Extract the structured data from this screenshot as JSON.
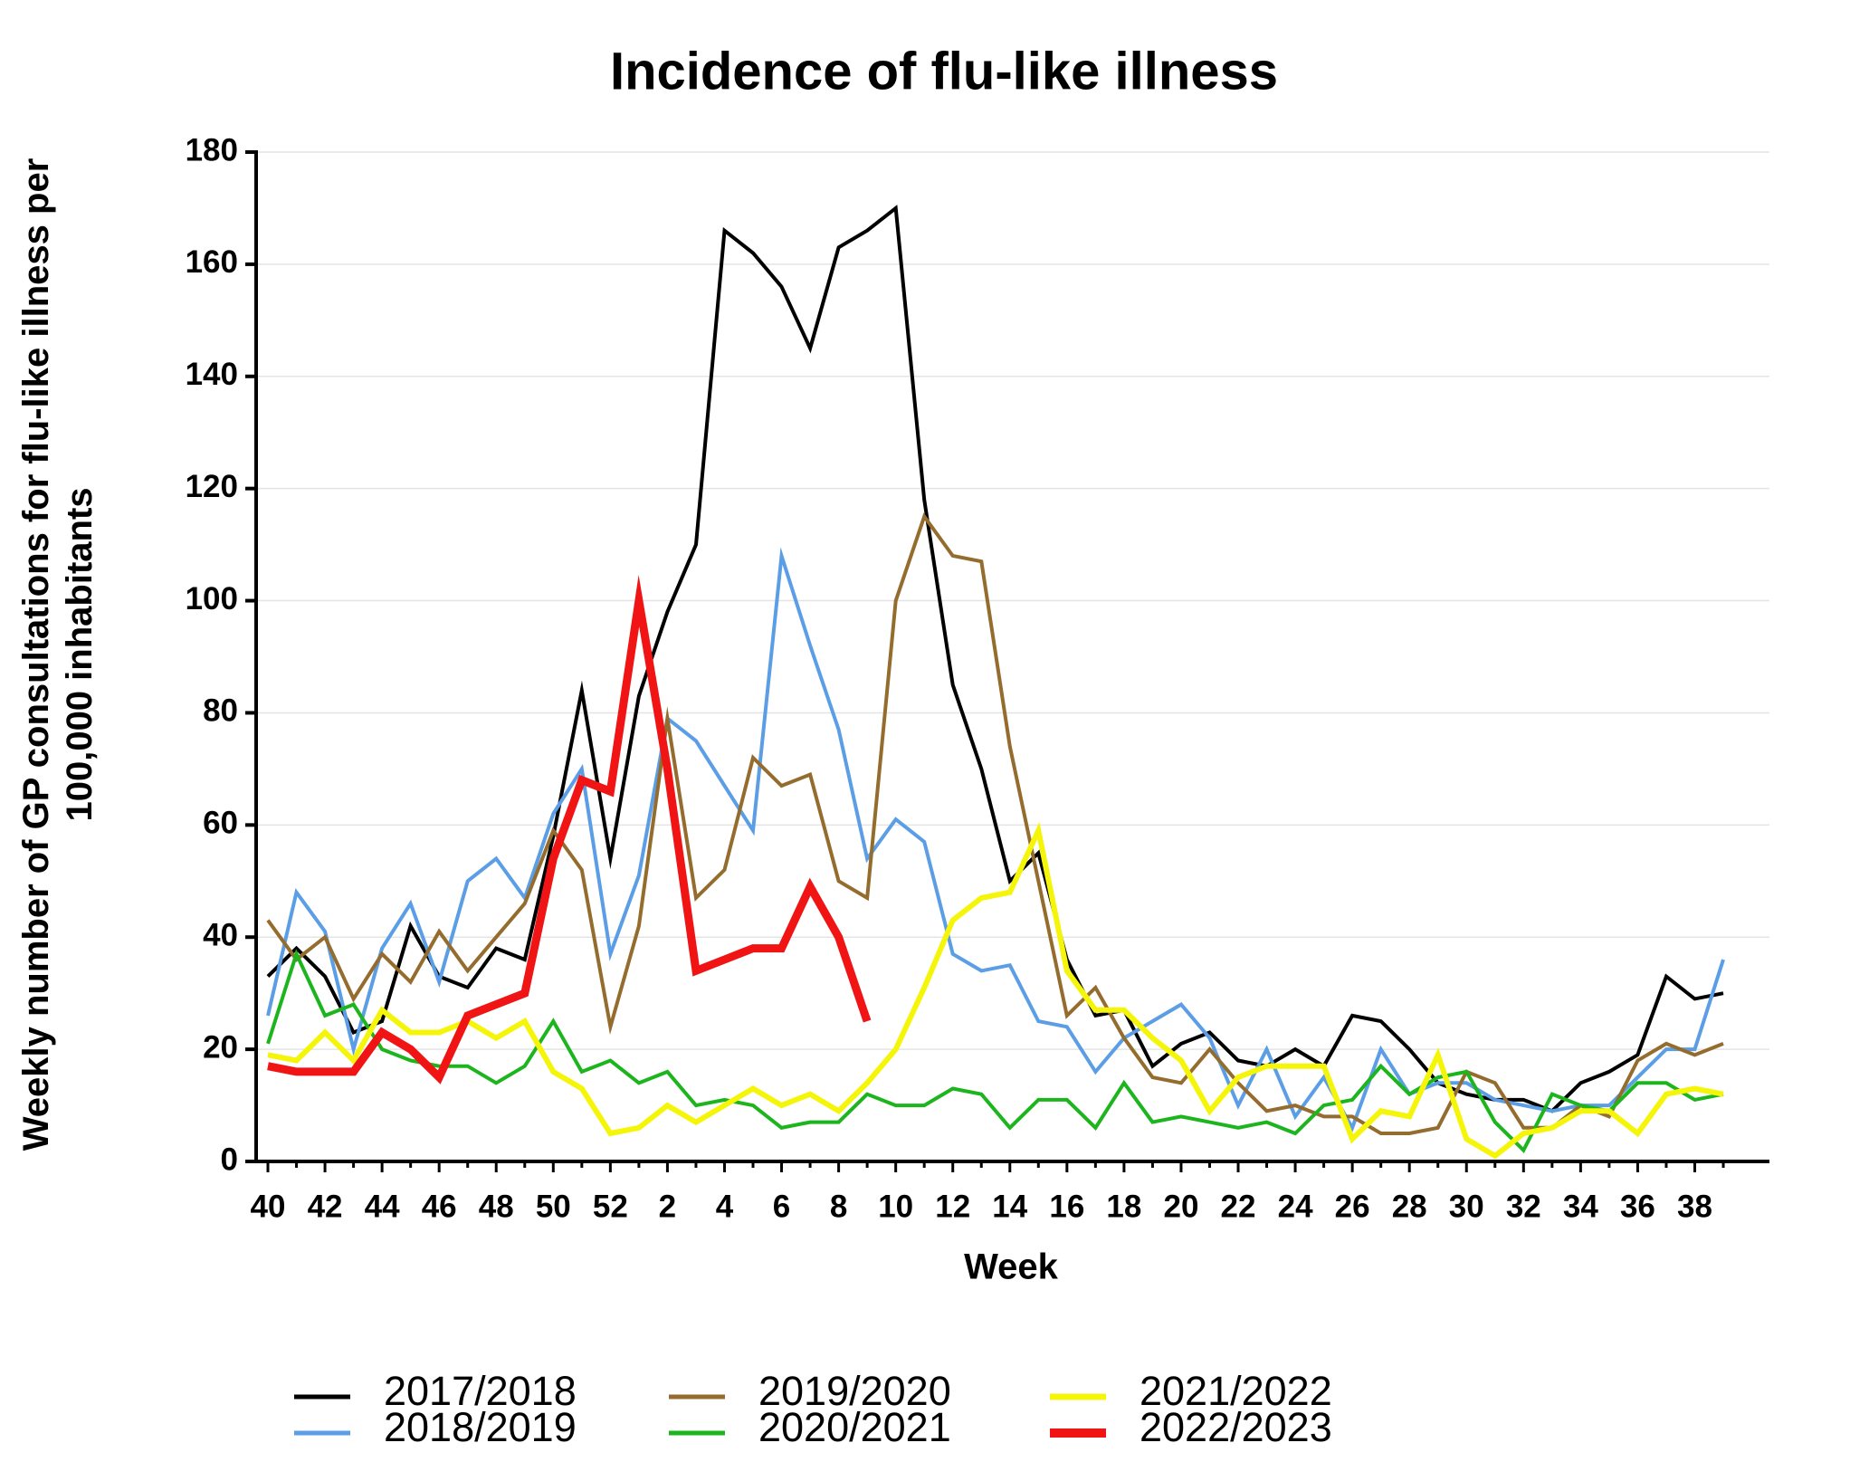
{
  "chart_data": {
    "type": "line",
    "title": "Incidence of flu-like illness",
    "xlabel": "Week",
    "ylabel": "Weekly number of GP consultations for flu-like illness per 100,000 inhabitants",
    "categories": [
      "40",
      null,
      "42",
      null,
      "44",
      null,
      "46",
      null,
      "48",
      null,
      "50",
      null,
      "52",
      null,
      "2",
      null,
      "4",
      null,
      "6",
      null,
      "8",
      null,
      "10",
      null,
      "12",
      null,
      "14",
      null,
      "16",
      null,
      "18",
      null,
      "20",
      null,
      "22",
      null,
      "24",
      null,
      "26",
      null,
      "28",
      null,
      "30",
      null,
      "32",
      null,
      "34",
      null,
      "36",
      null,
      "38",
      null
    ],
    "ylim": [
      0,
      180
    ],
    "yticks": [
      0,
      20,
      40,
      60,
      80,
      100,
      120,
      140,
      160,
      180
    ],
    "grid": true,
    "legend": "bottom",
    "series": [
      {
        "name": "2017/2018",
        "color": "#000000",
        "linewidth": 4,
        "values": [
          33,
          38,
          33,
          23,
          25,
          42,
          33,
          31,
          38,
          36,
          58,
          84,
          54,
          83,
          98,
          110,
          166,
          162,
          156,
          145,
          163,
          166,
          170,
          118,
          85,
          70,
          50,
          55,
          36,
          26,
          27,
          17,
          21,
          23,
          18,
          17,
          20,
          17,
          26,
          25,
          20,
          14,
          12,
          11,
          11,
          9,
          14,
          16,
          19,
          33,
          29,
          30
        ]
      },
      {
        "name": "2018/2019",
        "color": "#5b9ee6",
        "linewidth": 4,
        "values": [
          26,
          48,
          41,
          20,
          38,
          46,
          32,
          50,
          54,
          47,
          62,
          70,
          37,
          51,
          79,
          75,
          67,
          59,
          108,
          92,
          77,
          54,
          61,
          57,
          37,
          34,
          35,
          25,
          24,
          16,
          22,
          25,
          28,
          22,
          10,
          20,
          8,
          15,
          6,
          20,
          12,
          14,
          14,
          11,
          10,
          9,
          10,
          10,
          15,
          20,
          20,
          36
        ]
      },
      {
        "name": "2019/2020",
        "color": "#946c2e",
        "linewidth": 4,
        "values": [
          43,
          36,
          40,
          29,
          37,
          32,
          41,
          34,
          40,
          46,
          59,
          52,
          24,
          42,
          79,
          47,
          52,
          72,
          67,
          69,
          50,
          47,
          100,
          115,
          108,
          107,
          74,
          50,
          26,
          31,
          22,
          15,
          14,
          20,
          14,
          9,
          10,
          8,
          8,
          5,
          5,
          6,
          16,
          14,
          6,
          6,
          10,
          8,
          18,
          21,
          19,
          21
        ]
      },
      {
        "name": "2020/2021",
        "color": "#1db51d",
        "linewidth": 4,
        "values": [
          21,
          37,
          26,
          28,
          20,
          18,
          17,
          17,
          14,
          17,
          25,
          16,
          18,
          14,
          16,
          10,
          11,
          10,
          6,
          7,
          7,
          12,
          10,
          10,
          13,
          12,
          6,
          11,
          11,
          6,
          14,
          7,
          8,
          7,
          6,
          7,
          5,
          10,
          11,
          17,
          12,
          15,
          16,
          7,
          2,
          12,
          10,
          9,
          14,
          14,
          11,
          12
        ]
      },
      {
        "name": "2021/2022",
        "color": "#f5f50a",
        "linewidth": 6,
        "values": [
          19,
          18,
          23,
          18,
          27,
          23,
          23,
          25,
          22,
          25,
          16,
          13,
          5,
          6,
          10,
          7,
          10,
          13,
          10,
          12,
          9,
          14,
          20,
          31,
          43,
          47,
          48,
          59,
          34,
          27,
          27,
          22,
          18,
          9,
          15,
          17,
          17,
          17,
          4,
          9,
          8,
          19,
          4,
          1,
          5,
          6,
          9,
          9,
          5,
          12,
          13,
          12
        ]
      },
      {
        "name": "2022/2023",
        "color": "#f01414",
        "linewidth": 9,
        "values": [
          17,
          16,
          16,
          16,
          23,
          20,
          15,
          26,
          28,
          30,
          54,
          68,
          66,
          100,
          70,
          34,
          36,
          38,
          38,
          49,
          40,
          25,
          null,
          null,
          null,
          null,
          null,
          null,
          null,
          null,
          null,
          null,
          null,
          null,
          null,
          null,
          null,
          null,
          null,
          null,
          null,
          null,
          null,
          null,
          null,
          null,
          null,
          null,
          null,
          null,
          null,
          null
        ]
      }
    ]
  }
}
